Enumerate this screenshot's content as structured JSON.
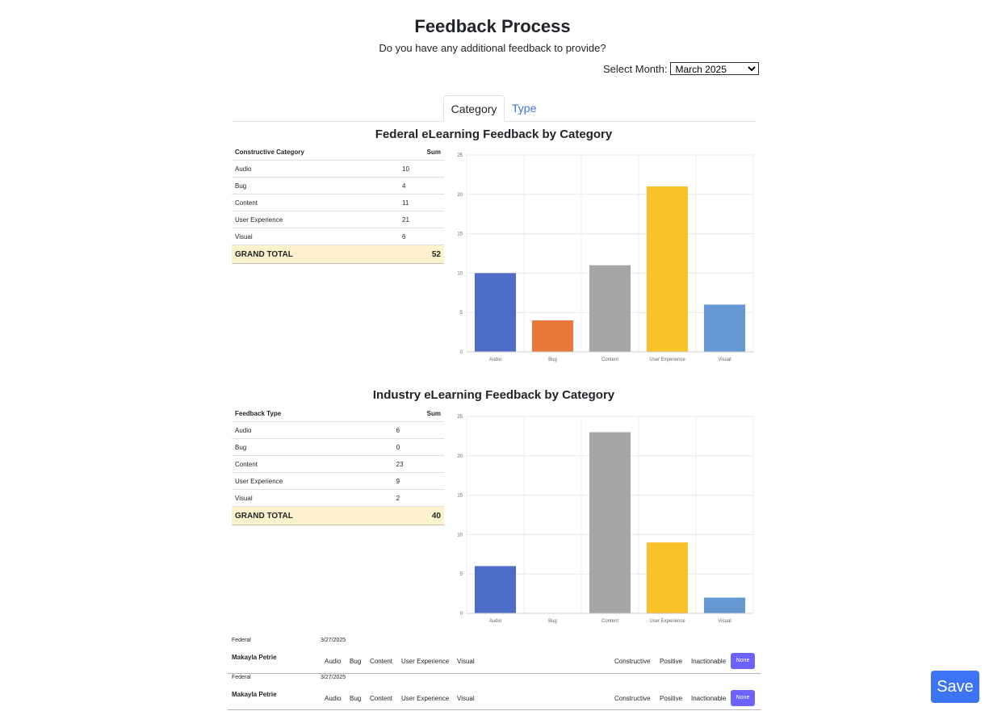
{
  "header": {
    "title": "Feedback Process",
    "subtitle": "Do you have any additional feedback to provide?",
    "month_label": "Select Month:",
    "month_value": "March 2025"
  },
  "tabs": [
    {
      "label": "Category",
      "active": true
    },
    {
      "label": "Type",
      "active": false
    }
  ],
  "sections": [
    {
      "title": "Federal eLearning Feedback by Category",
      "table": {
        "headers": [
          "Constructive Category",
          "Sum"
        ],
        "rows": [
          {
            "label": "Audio",
            "value": "10"
          },
          {
            "label": "Bug",
            "value": "4"
          },
          {
            "label": "Content",
            "value": "11"
          },
          {
            "label": "User Experience",
            "value": "21"
          },
          {
            "label": "Visual",
            "value": "6"
          }
        ],
        "total_label": "GRAND TOTAL",
        "total_value": "52"
      }
    },
    {
      "title": "Industry eLearning Feedback by Category",
      "table": {
        "headers": [
          "Feedback Type",
          "Sum"
        ],
        "rows": [
          {
            "label": "Audio",
            "value": "6"
          },
          {
            "label": "Bug",
            "value": "0"
          },
          {
            "label": "Content",
            "value": "23"
          },
          {
            "label": "User Experience",
            "value": "9"
          },
          {
            "label": "Visual",
            "value": "2"
          }
        ],
        "total_label": "GRAND TOTAL",
        "total_value": "40"
      }
    }
  ],
  "chart_data": [
    {
      "type": "bar",
      "title": "Federal eLearning Feedback by Category",
      "categories": [
        "Audio",
        "Bug",
        "Content",
        "User Experience",
        "Visual"
      ],
      "values": [
        10,
        4,
        11,
        21,
        6
      ],
      "colors": [
        "#4e6dc6",
        "#e8783a",
        "#a7a5a5",
        "#f9c12a",
        "#6598d3"
      ],
      "ylim": [
        0,
        25
      ],
      "yticks": [
        0,
        5,
        10,
        15,
        20,
        25
      ],
      "grid": true
    },
    {
      "type": "bar",
      "title": "Industry eLearning Feedback by Category",
      "categories": [
        "Audio",
        "Bug",
        "Content",
        "User Experience",
        "Visual"
      ],
      "values": [
        6,
        0,
        23,
        9,
        2
      ],
      "colors": [
        "#4e6dc6",
        "#e8783a",
        "#a7a5a5",
        "#f9c12a",
        "#6598d3"
      ],
      "ylim": [
        0,
        25
      ],
      "yticks": [
        0,
        5,
        10,
        15,
        20,
        25
      ],
      "grid": true
    }
  ],
  "feedback_entries": [
    {
      "source": "Federal",
      "date": "3/27/2025",
      "name": "Makayla Petrie",
      "categories": [
        "Audio",
        "Bug",
        "Content",
        "User Experience",
        "Visual"
      ],
      "types": [
        "Constructive",
        "Positive",
        "Inactionable"
      ],
      "selected_label": "None"
    },
    {
      "source": "Federal",
      "date": "3/27/2025",
      "name": "Makayla Petrie",
      "categories": [
        "Audio",
        "Bug",
        "Content",
        "User Experience",
        "Visual"
      ],
      "types": [
        "Constructive",
        "Positive",
        "Inactionable"
      ],
      "selected_label": "None"
    }
  ],
  "save_label": "Save",
  "colors": {
    "accent": "#3d74f5",
    "none_button": "#6c63ff",
    "total_row": "#fdf2cd"
  }
}
